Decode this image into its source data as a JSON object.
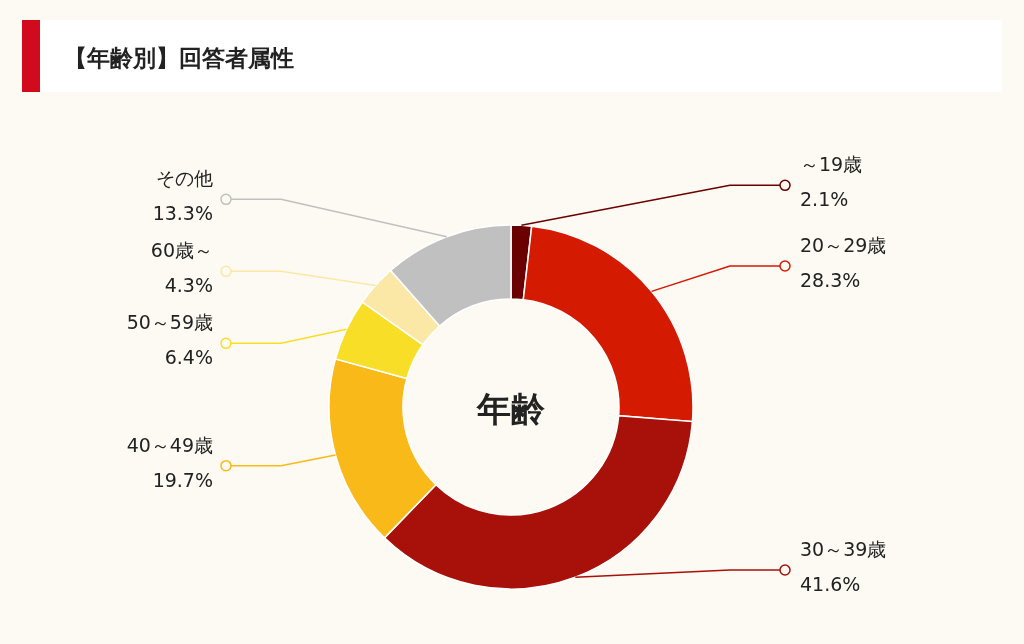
{
  "chart_data": {
    "type": "donut",
    "title": "【年齢別】回答者属性",
    "categories": [
      "～19歳",
      "20～29歳",
      "30～39歳",
      "40～49歳",
      "50～59歳",
      "60歳～",
      "その他"
    ],
    "values": [
      2.1,
      28.3,
      41.6,
      19.7,
      6.4,
      4.3,
      13.3
    ],
    "value_labels": [
      "2.1%",
      "28.3%",
      "41.6%",
      "19.7%",
      "6.4%",
      "4.3%",
      "13.3%"
    ],
    "colors": [
      "#6b0000",
      "#d41a00",
      "#a8100a",
      "#f9b918",
      "#f9de27",
      "#fce8a6",
      "#c0c0c0"
    ],
    "annotations": [
      "年齢"
    ]
  }
}
